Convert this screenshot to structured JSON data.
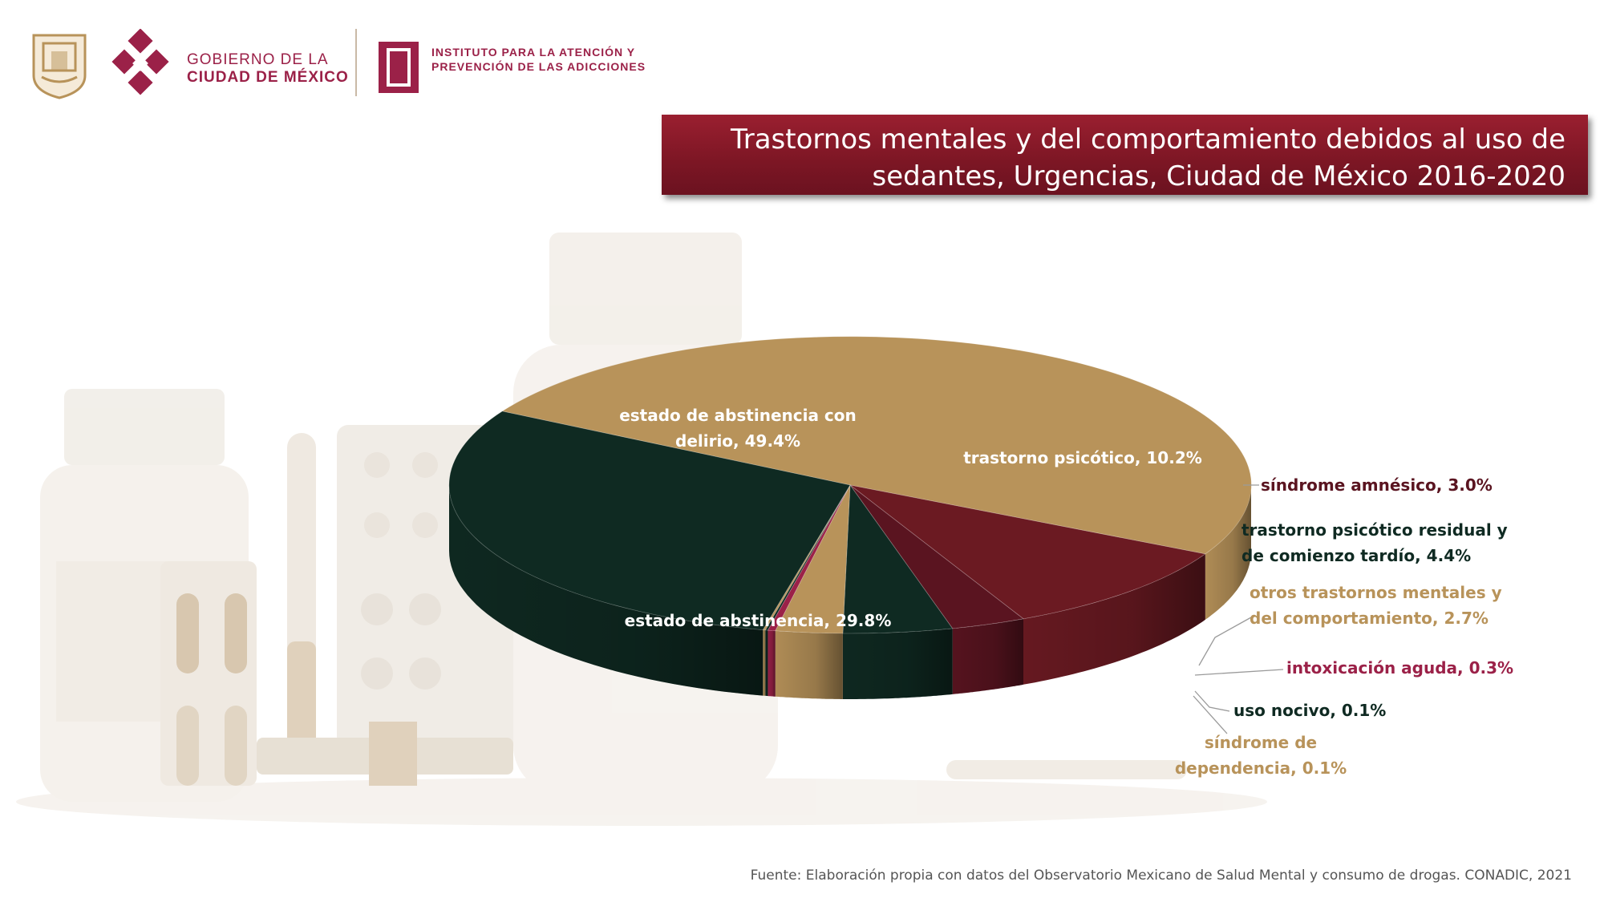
{
  "header": {
    "gov_line1": "GOBIERNO DE LA",
    "gov_line2": "CIUDAD DE MÉXICO",
    "iapa_line1": "INSTITUTO PARA LA ATENCIÓN Y",
    "iapa_line2": "PREVENCIÓN DE LAS ADICCIONES"
  },
  "colors": {
    "brand": "#9b2148",
    "gold": "#b8935a",
    "dark_green": "#0f2a22",
    "wine": "#6b1a22",
    "title_bg": "#7c1624"
  },
  "chart_data": {
    "type": "pie",
    "title": "Trastornos mentales y del comportamiento debidos al uso de sedantes, Urgencias, Ciudad de México 2016-2020",
    "title_lines": [
      "Trastornos mentales y del comportamiento debidos al uso de",
      "sedantes, Urgencias, Ciudad de México 2016-2020"
    ],
    "slices": [
      {
        "label": "estado de abstinencia con delirio",
        "value": 49.4,
        "color": "#b8935a",
        "label_lines": [
          "estado de abstinencia con",
          "delirio, 49.4%"
        ],
        "label_color": "#ffffff"
      },
      {
        "label": "trastorno psicótico",
        "value": 10.2,
        "color": "#6b1a22",
        "label_lines": [
          "trastorno psicótico, 10.2%"
        ],
        "label_color": "#ffffff"
      },
      {
        "label": "síndrome amnésico",
        "value": 3.0,
        "color": "#5a1420",
        "label_lines": [
          "síndrome amnésico, 3.0%"
        ],
        "label_color": "#5a1420"
      },
      {
        "label": "trastorno psicótico residual y de comienzo tardío",
        "value": 4.4,
        "color": "#0f2a22",
        "label_lines": [
          "trastorno psicótico residual y",
          "de comienzo tardío, 4.4%"
        ],
        "label_color": "#0f2a22"
      },
      {
        "label": "otros trastornos mentales y del comportamiento",
        "value": 2.7,
        "color": "#b8935a",
        "label_lines": [
          "otros trastornos mentales y",
          "del comportamiento, 2.7%"
        ],
        "label_color": "#b8935a"
      },
      {
        "label": "intoxicación aguda",
        "value": 0.3,
        "color": "#9b2148",
        "label_lines": [
          "intoxicación aguda, 0.3%"
        ],
        "label_color": "#9b2148"
      },
      {
        "label": "uso nocivo",
        "value": 0.1,
        "color": "#0f2a22",
        "label_lines": [
          "uso nocivo, 0.1%"
        ],
        "label_color": "#0f2a22"
      },
      {
        "label": "síndrome de dependencia",
        "value": 0.1,
        "color": "#b8935a",
        "label_lines": [
          "síndrome de",
          "dependencia, 0.1%"
        ],
        "label_color": "#b8935a"
      },
      {
        "label": "estado de abstinencia",
        "value": 29.8,
        "color": "#0f2a22",
        "label_lines": [
          "estado de abstinencia, 29.8%"
        ],
        "label_color": "#ffffff"
      }
    ]
  },
  "source": "Fuente: Elaboración propia con datos del Observatorio Mexicano de Salud Mental y consumo de drogas. CONADIC, 2021"
}
